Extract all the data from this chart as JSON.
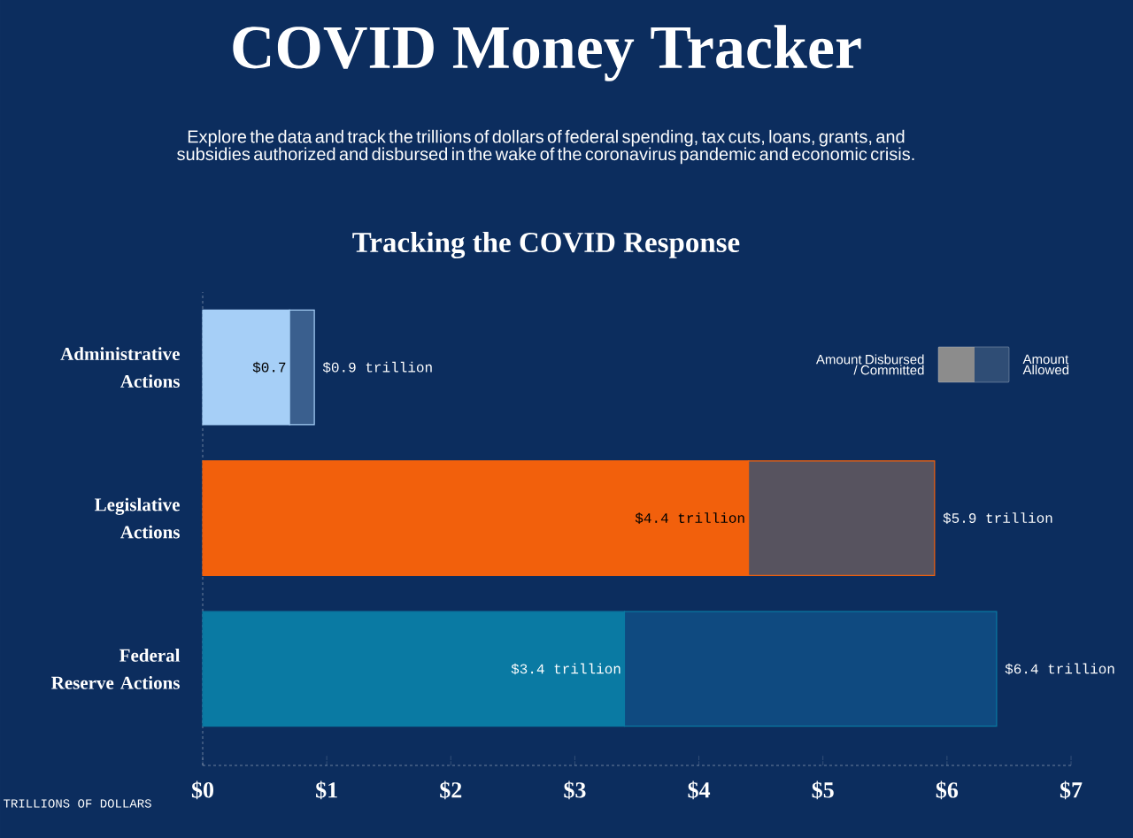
{
  "chart_data": {
    "type": "bar",
    "orientation": "horizontal",
    "title": "COVID Money Tracker",
    "subtitle": "Explore the data and track the trillions of dollars of federal spending, tax cuts, loans, grants, and subsidies authorized and disbursed in the wake of the coronavirus pandemic and economic crisis.",
    "annotations": [
      "Tracking the COVID Response"
    ],
    "xlabel": "TRILLIONS OF DOLLARS",
    "categories": [
      "Administrative Actions",
      "Legislative Actions",
      "Federal Reserve Actions"
    ],
    "series": [
      {
        "name": "Amount Disbursed / Committed",
        "color": "#8c8c8c",
        "colors": [
          "#a6cff7",
          "#f2600c",
          "#0a7aa3"
        ],
        "values": [
          0.7,
          4.4,
          3.4
        ],
        "value_labels": [
          "$0.7",
          "$4.4 trillion",
          "$3.4 trillion"
        ]
      },
      {
        "name": "Amount Allowed",
        "color": "#2f4d75",
        "colors": [
          "#3a5f8e",
          "#57535f",
          "#0f4a80"
        ],
        "values": [
          0.2,
          1.5,
          3.0
        ]
      }
    ],
    "xlim": [
      0,
      7
    ],
    "xticks": [
      {
        "value": 0,
        "label": "$0"
      },
      {
        "value": 1,
        "label": "$1"
      },
      {
        "value": 2,
        "label": "$2"
      },
      {
        "value": 3,
        "label": "$3"
      },
      {
        "value": 4,
        "label": "$4"
      },
      {
        "value": 5,
        "label": "$5"
      },
      {
        "value": 6,
        "label": "$6"
      },
      {
        "value": 7,
        "label": "$7"
      }
    ],
    "stacked": true,
    "totals": [
      "$0.9 trillion",
      "$5.9 trillion",
      "$6.4 trillion"
    ],
    "legend": "top right"
  }
}
